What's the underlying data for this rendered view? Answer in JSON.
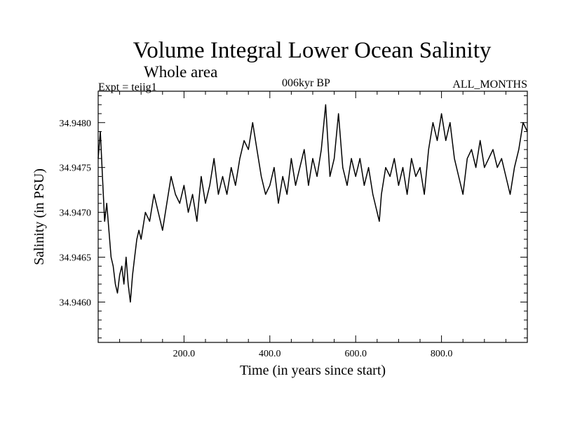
{
  "header": {
    "title": "Volume Integral Lower Ocean Salinity",
    "subtitle": "Whole area",
    "experiment": "Expt = teiig1",
    "period": "006kyr BP",
    "months": "ALL_MONTHS"
  },
  "colors": {
    "line": "#000000",
    "axes": "#000000",
    "background": "#ffffff"
  },
  "chart_data": {
    "type": "line",
    "title": "Volume Integral Lower Ocean Salinity",
    "subtitle": "Whole area",
    "xlabel": "Time (in years since start)",
    "ylabel": "Salinity (in PSU)",
    "xlim": [
      0,
      1000
    ],
    "ylim": [
      34.94555,
      34.94835
    ],
    "xticks": [
      200,
      400,
      600,
      800
    ],
    "xtick_labels": [
      "200.0",
      "400.0",
      "600.0",
      "800.0"
    ],
    "yticks": [
      34.946,
      34.9465,
      34.947,
      34.9475,
      34.948
    ],
    "ytick_labels": [
      "34.9460",
      "34.9465",
      "34.9470",
      "34.9475",
      "34.9480"
    ],
    "grid": false,
    "legend": "none",
    "series": [
      {
        "x": [
          0,
          5,
          10,
          15,
          20,
          25,
          30,
          35,
          40,
          45,
          50,
          55,
          60,
          65,
          70,
          75,
          80,
          85,
          90,
          95,
          100,
          110,
          120,
          130,
          140,
          150,
          160,
          170,
          180,
          190,
          200,
          210,
          220,
          230,
          240,
          250,
          260,
          270,
          280,
          290,
          300,
          310,
          320,
          330,
          340,
          350,
          360,
          370,
          380,
          390,
          400,
          410,
          420,
          430,
          440,
          450,
          460,
          470,
          480,
          490,
          500,
          510,
          520,
          530,
          540,
          550,
          560,
          570,
          580,
          590,
          600,
          610,
          620,
          630,
          640,
          650,
          655,
          660,
          670,
          680,
          690,
          700,
          710,
          720,
          730,
          740,
          750,
          760,
          770,
          780,
          790,
          800,
          810,
          820,
          830,
          840,
          850,
          860,
          870,
          880,
          890,
          900,
          910,
          920,
          930,
          940,
          950,
          960,
          970,
          980,
          990,
          1000
        ],
        "y": [
          34.9476,
          34.9479,
          34.9474,
          34.9469,
          34.9471,
          34.9468,
          34.9465,
          34.9464,
          34.9462,
          34.9461,
          34.9463,
          34.9464,
          34.9462,
          34.9465,
          34.9462,
          34.946,
          34.9463,
          34.9465,
          34.9467,
          34.9468,
          34.9467,
          34.947,
          34.9469,
          34.9472,
          34.947,
          34.9468,
          34.9471,
          34.9474,
          34.9472,
          34.9471,
          34.9473,
          34.947,
          34.9472,
          34.9469,
          34.9474,
          34.9471,
          34.9473,
          34.9476,
          34.9472,
          34.9474,
          34.9472,
          34.9475,
          34.9473,
          34.9476,
          34.9478,
          34.9477,
          34.948,
          34.9477,
          34.9474,
          34.9472,
          34.9473,
          34.9475,
          34.9471,
          34.9474,
          34.9472,
          34.9476,
          34.9473,
          34.9475,
          34.9477,
          34.9473,
          34.9476,
          34.9474,
          34.9477,
          34.9482,
          34.9474,
          34.9476,
          34.9481,
          34.9475,
          34.9473,
          34.9476,
          34.9474,
          34.9476,
          34.9473,
          34.9475,
          34.9472,
          34.947,
          34.9469,
          34.9472,
          34.9475,
          34.9474,
          34.9476,
          34.9473,
          34.9475,
          34.9472,
          34.9476,
          34.9474,
          34.9475,
          34.9472,
          34.9477,
          34.948,
          34.9478,
          34.9481,
          34.9478,
          34.948,
          34.9476,
          34.9474,
          34.9472,
          34.9476,
          34.9477,
          34.9475,
          34.9478,
          34.9475,
          34.9476,
          34.9477,
          34.9475,
          34.9476,
          34.9474,
          34.9472,
          34.9475,
          34.9477,
          34.948,
          34.9479
        ]
      }
    ]
  }
}
